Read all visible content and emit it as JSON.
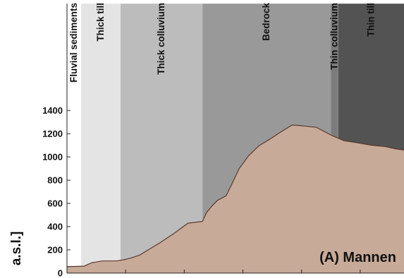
{
  "chart_data": {
    "type": "area",
    "title": "",
    "panel_label": "(A) Mannen",
    "ylabel": "a.s.l.]",
    "xlabel": "",
    "ylim": [
      0,
      1400
    ],
    "y_visible_top": 2320,
    "xlim": [
      0,
      100
    ],
    "yticks": [
      0,
      200,
      400,
      600,
      800,
      1000,
      1200,
      1400
    ],
    "xticks": [
      0,
      17.4,
      34.8,
      52.2,
      69.6,
      87.0
    ],
    "grid": false,
    "zones": [
      {
        "name": "Fluvial sediments",
        "start": 0,
        "end": 4.2,
        "color": "#ffffff"
      },
      {
        "name": "Thick till",
        "start": 4.2,
        "end": 15.9,
        "color": "#e4e4e4"
      },
      {
        "name": "Thick colluvium",
        "start": 15.9,
        "end": 40.2,
        "color": "#bcbcbc"
      },
      {
        "name": "Bedrock",
        "start": 40.2,
        "end": 78.3,
        "color": "#999999"
      },
      {
        "name": "Thin colluvium",
        "start": 78.3,
        "end": 80.5,
        "color": "#7c7c7c"
      },
      {
        "name": "Thin till",
        "start": 80.5,
        "end": 100,
        "color": "#535353"
      }
    ],
    "series": [
      {
        "fill_color": "#c8aa98",
        "x": [
          0,
          5.1,
          7.4,
          8.5,
          10.6,
          12.3,
          14.8,
          16.9,
          19.0,
          21.6,
          24.1,
          27.5,
          31.7,
          35.9,
          40.2,
          41.4,
          43.1,
          44.6,
          47.2,
          48.8,
          51.1,
          53.9,
          56.9,
          60.3,
          63.7,
          66.8,
          68.9,
          70.8,
          74.0,
          76.3,
          78.6,
          82.2,
          86.5,
          90.5,
          94.3,
          97.4,
          100
        ],
        "y": [
          55,
          60,
          90,
          95,
          105,
          105,
          105,
          115,
          130,
          155,
          200,
          260,
          340,
          430,
          445,
          520,
          580,
          625,
          665,
          760,
          900,
          1010,
          1095,
          1155,
          1220,
          1275,
          1270,
          1265,
          1255,
          1220,
          1185,
          1140,
          1120,
          1100,
          1090,
          1070,
          1060
        ]
      }
    ]
  }
}
